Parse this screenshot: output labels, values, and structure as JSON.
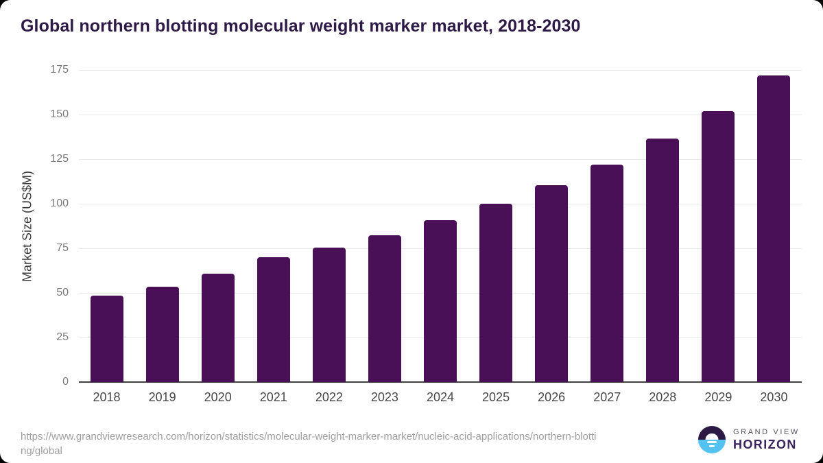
{
  "chart_data": {
    "type": "bar",
    "title": "Global northern blotting molecular weight marker market, 2018-2030",
    "categories": [
      "2018",
      "2019",
      "2020",
      "2021",
      "2022",
      "2023",
      "2024",
      "2025",
      "2026",
      "2027",
      "2028",
      "2029",
      "2030"
    ],
    "values": [
      48.5,
      53.6,
      60.6,
      69.9,
      75.4,
      82.5,
      90.8,
      100,
      110.2,
      122,
      136.4,
      151.9,
      171.8
    ],
    "xlabel": "",
    "ylabel": "Market Size (US$M)",
    "ylim": [
      0,
      175
    ],
    "yticks": [
      0,
      25,
      50,
      75,
      100,
      125,
      150,
      175
    ],
    "grid": true,
    "legend": "none",
    "bar_color": "#491058"
  },
  "footer": {
    "source_url": "https://www.grandviewresearch.com/horizon/statistics/molecular-weight-marker-market/nucleic-acid-applications/northern-blotting/global",
    "source_url_lines": [
      "https://www.grandviewresearch.com/horizon/statistics/molecular-weight-marker-market/nucleic-acid-applications/northern-blotti",
      "ng/global"
    ],
    "logo": {
      "line1": "GRAND VIEW",
      "line2": "HORIZON"
    }
  },
  "colors": {
    "bar": "#491058",
    "title_text": "#2e1a47",
    "grid": "#e8e8e8",
    "axis_line": "#404040",
    "tick_label": "#7a7a7a",
    "x_label": "#474747",
    "url_text": "#9e9e9e",
    "logo_dark": "#2c1a45",
    "logo_blue": "#55c3f1",
    "logo_gray_text": "#56505d",
    "logo_purple_text": "#3b2260"
  }
}
